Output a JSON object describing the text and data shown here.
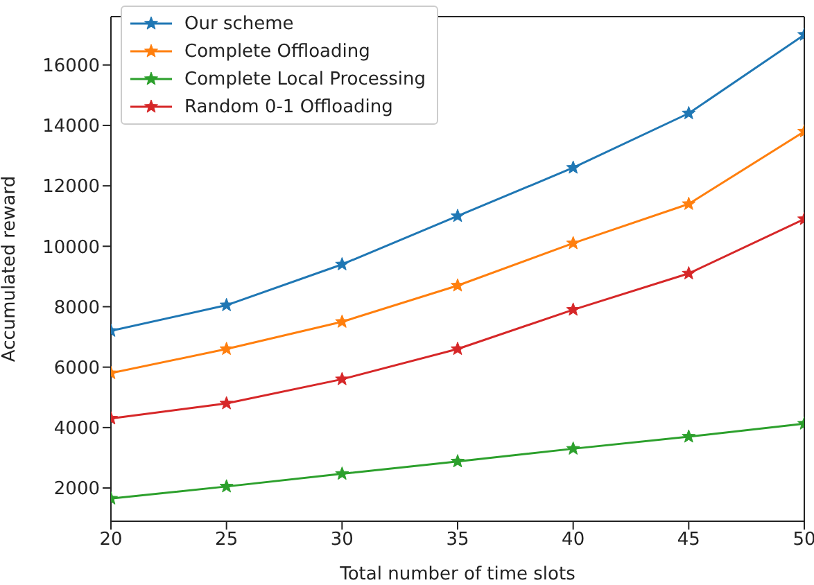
{
  "chart_data": {
    "type": "line",
    "xlabel": "Total number of time slots",
    "ylabel": "Accumulated reward",
    "x": [
      20,
      25,
      30,
      35,
      40,
      45,
      50
    ],
    "xlim": [
      20,
      50
    ],
    "xticks": [
      20,
      25,
      30,
      35,
      40,
      45,
      50
    ],
    "ylim": [
      900,
      17600
    ],
    "yticks": [
      2000,
      4000,
      6000,
      8000,
      10000,
      12000,
      14000,
      16000
    ],
    "grid": false,
    "legend": "top left",
    "marker": "star",
    "line_style": "solid",
    "series": [
      {
        "name": "Our scheme",
        "color": "#1f77b4",
        "values": [
          7200,
          8050,
          9400,
          11000,
          12600,
          14400,
          17000
        ]
      },
      {
        "name": "Complete Offloading",
        "color": "#ff7f0e",
        "values": [
          5800,
          6600,
          7500,
          8700,
          10100,
          11400,
          13800
        ]
      },
      {
        "name": "Complete Local Processing",
        "color": "#2ca02c",
        "values": [
          1650,
          2050,
          2470,
          2880,
          3300,
          3700,
          4130
        ]
      },
      {
        "name": "Random 0-1 Offloading",
        "color": "#d62728",
        "values": [
          4300,
          4800,
          5600,
          6600,
          7900,
          9100,
          10900
        ]
      }
    ]
  }
}
